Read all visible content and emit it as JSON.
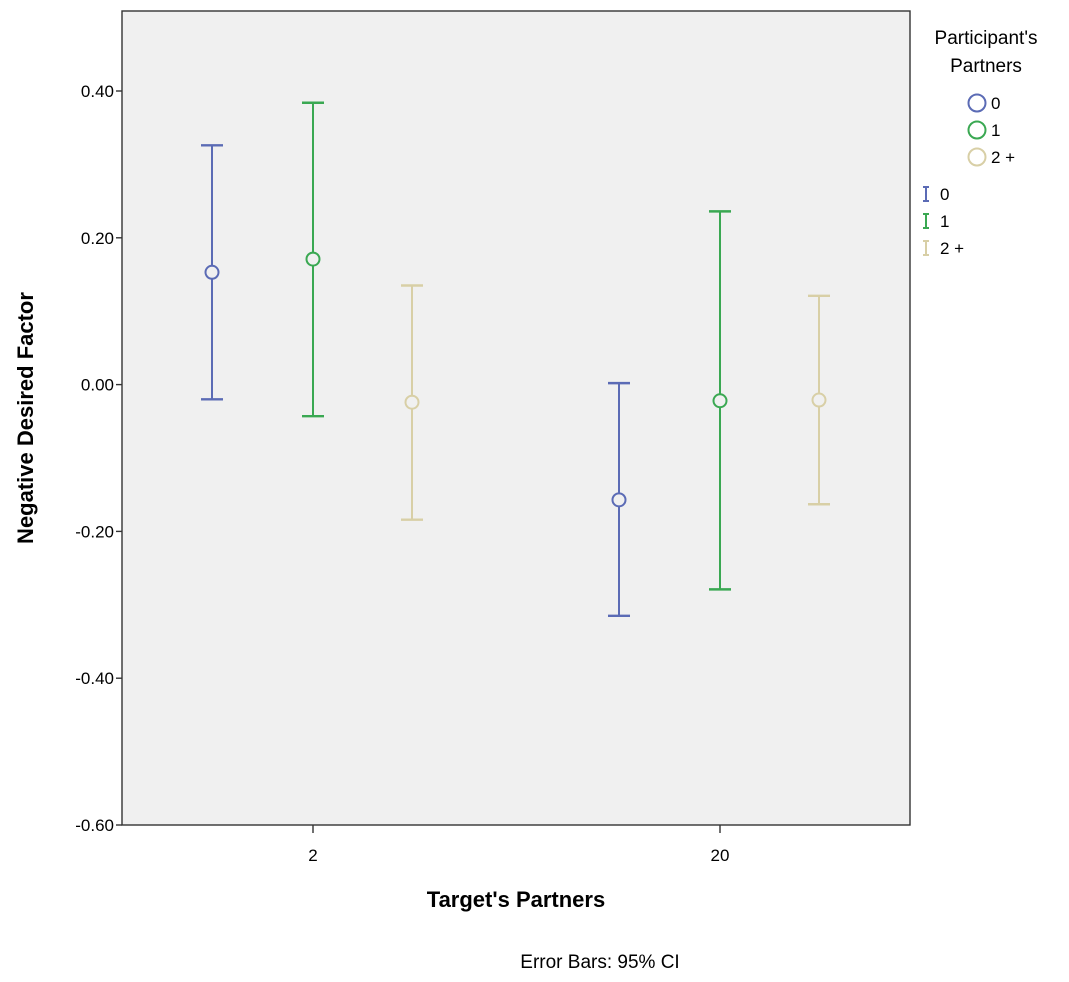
{
  "chart_data": {
    "type": "errorbar",
    "xlabel": "Target's Partners",
    "ylabel": "Negative Desired Factor",
    "footnote": "Error Bars: 95% CI",
    "categories": [
      "2",
      "20"
    ],
    "ylim": [
      -0.6,
      0.52
    ],
    "yticks": [
      0.4,
      0.2,
      0.0,
      -0.2,
      -0.4,
      -0.6
    ],
    "ytick_labels": [
      "0.40",
      "0.20",
      "0.00",
      "-0.20",
      "-0.40",
      "-0.60"
    ],
    "grid": false,
    "legend": {
      "title": "Participant's Partners",
      "position": "right",
      "marker_entries": [
        "0",
        "1",
        "2 +"
      ],
      "errorbar_entries": [
        "0",
        "1",
        "2 +"
      ]
    },
    "series": [
      {
        "name": "0",
        "color": "#5b6bb5",
        "means": [
          0.153,
          -0.157
        ],
        "lower": [
          -0.02,
          -0.315
        ],
        "upper": [
          0.326,
          0.002
        ]
      },
      {
        "name": "1",
        "color": "#3aa852",
        "means": [
          0.171,
          -0.022
        ],
        "lower": [
          -0.043,
          -0.279
        ],
        "upper": [
          0.384,
          0.236
        ]
      },
      {
        "name": "2 +",
        "color": "#d8cfa6",
        "means": [
          -0.024,
          -0.021
        ],
        "lower": [
          -0.184,
          -0.163
        ],
        "upper": [
          0.135,
          0.121
        ]
      }
    ]
  }
}
